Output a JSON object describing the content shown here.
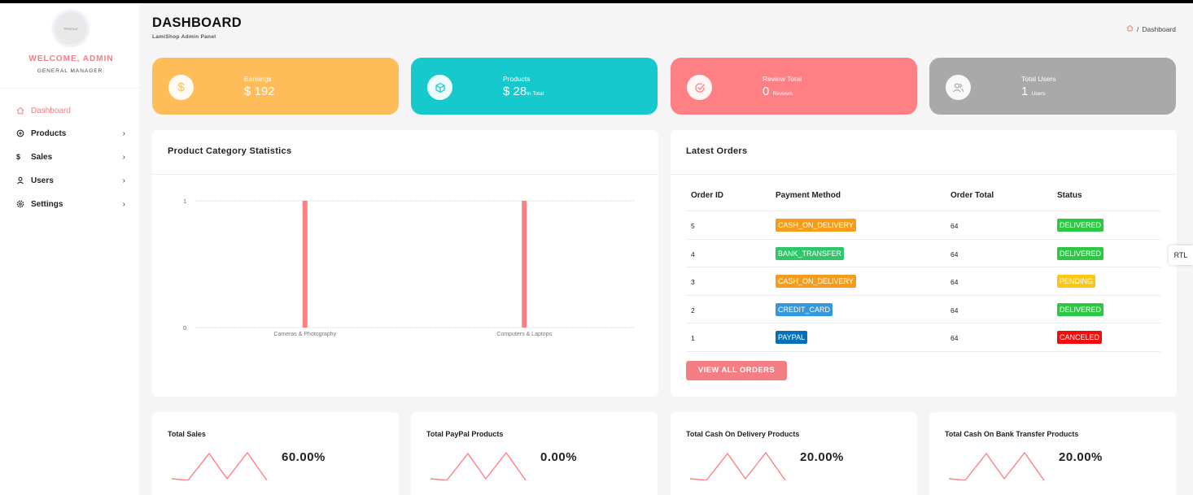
{
  "sidebar": {
    "avatar_text": "PROFILE",
    "welcome": "WELCOME, ADMIN",
    "role": "GENERAL MANAGER.",
    "items": [
      {
        "label": "Dashboard",
        "icon": "home-icon"
      },
      {
        "label": "Products",
        "icon": "box-icon"
      },
      {
        "label": "Sales",
        "icon": "dollar-icon"
      },
      {
        "label": "Users",
        "icon": "user-icon"
      },
      {
        "label": "Settings",
        "icon": "gear-icon"
      }
    ]
  },
  "header": {
    "title": "DASHBOARD",
    "subtitle": "LamiShop Admin Panel",
    "breadcrumb_sep": "/",
    "breadcrumb_current": "Dashboard"
  },
  "stats": [
    {
      "label": "Earnings",
      "value": "$ 192",
      "suffix": "",
      "color": "#ffbd59",
      "icon": "dollar-icon"
    },
    {
      "label": "Products",
      "value": "$ 28",
      "suffix": "In Total",
      "color": "#16c9cc",
      "icon": "cube-icon"
    },
    {
      "label": "Review Total",
      "value": "0",
      "suffix": "Reviews",
      "color": "#fe7f84",
      "icon": "check-circle-icon"
    },
    {
      "label": "Total Users",
      "value": "1",
      "suffix": "Users",
      "color": "#a9a9a9",
      "icon": "users-icon"
    }
  ],
  "category_panel": {
    "title": "Product Category Statistics"
  },
  "chart_data": {
    "type": "bar",
    "title": "",
    "categories": [
      "Cameras & Photography",
      "Computers & Laptops"
    ],
    "values": [
      1,
      1
    ],
    "ylim": [
      0,
      1
    ],
    "yticks": [
      "0",
      "1"
    ],
    "color": "#fe7f84",
    "grid": true
  },
  "orders": {
    "title": "Latest Orders",
    "columns": [
      "Order ID",
      "Payment Method",
      "Order Total",
      "Status"
    ],
    "rows": [
      {
        "id": "5",
        "method": "CASH_ON_DELIVERY",
        "method_color": "#f59d1b",
        "total": "64",
        "status": "DELIVERED",
        "status_color": "#2dc743"
      },
      {
        "id": "4",
        "method": "BANK_TRANSFER",
        "method_color": "#2dc76a",
        "total": "64",
        "status": "DELIVERED",
        "status_color": "#2dc743"
      },
      {
        "id": "3",
        "method": "CASH_ON_DELIVERY",
        "method_color": "#f59d1b",
        "total": "64",
        "status": "PENDING",
        "status_color": "#fdc514"
      },
      {
        "id": "2",
        "method": "CREDIT_CARD",
        "method_color": "#3598db",
        "total": "64",
        "status": "DELIVERED",
        "status_color": "#2dc743"
      },
      {
        "id": "1",
        "method": "PAYPAL",
        "method_color": "#0570b5",
        "total": "64",
        "status": "CANCELED",
        "status_color": "#f20d0d"
      }
    ],
    "button": "VIEW ALL ORDERS"
  },
  "mini_cards": [
    {
      "title": "Total Sales",
      "percent": "60.00%"
    },
    {
      "title": "Total PayPal Products",
      "percent": "0.00%"
    },
    {
      "title": "Total Cash On Delivery Products",
      "percent": "20.00%"
    },
    {
      "title": "Total Cash On Bank Transfer Products",
      "percent": "20.00%"
    }
  ],
  "rtl_label": "RTL"
}
